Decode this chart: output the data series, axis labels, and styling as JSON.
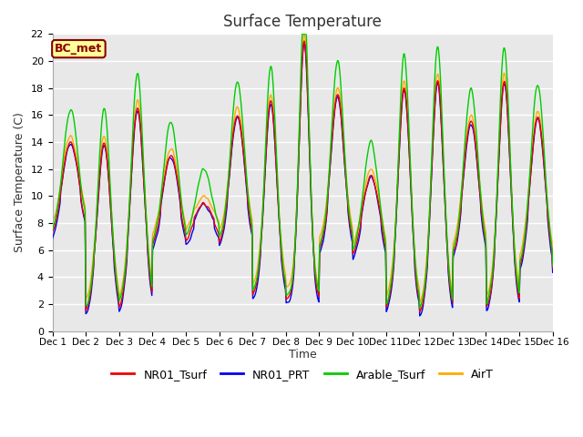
{
  "title": "Surface Temperature",
  "ylabel": "Surface Temperature (C)",
  "xlabel": "Time",
  "annotation": "BC_met",
  "ylim": [
    0,
    22
  ],
  "yticks": [
    0,
    2,
    4,
    6,
    8,
    10,
    12,
    14,
    16,
    18,
    20,
    22
  ],
  "xtick_labels": [
    "Dec 1",
    "Dec 2",
    "Dec 3",
    "Dec 4",
    "Dec 5",
    "Dec 6",
    "Dec 7",
    "Dec 8",
    "Dec 9",
    "Dec 10",
    "Dec 11",
    "Dec 12",
    "Dec 13",
    "Dec 14",
    "Dec 15",
    "Dec 16"
  ],
  "colors": {
    "NR01_Tsurf": "#ee0000",
    "NR01_PRT": "#0000ee",
    "Arable_Tsurf": "#00cc00",
    "AirT": "#ffaa00"
  },
  "background_color": "#ffffff",
  "plot_background": "#e8e8e8",
  "grid_color": "#ffffff",
  "linewidth": 1.0,
  "n_points": 720
}
